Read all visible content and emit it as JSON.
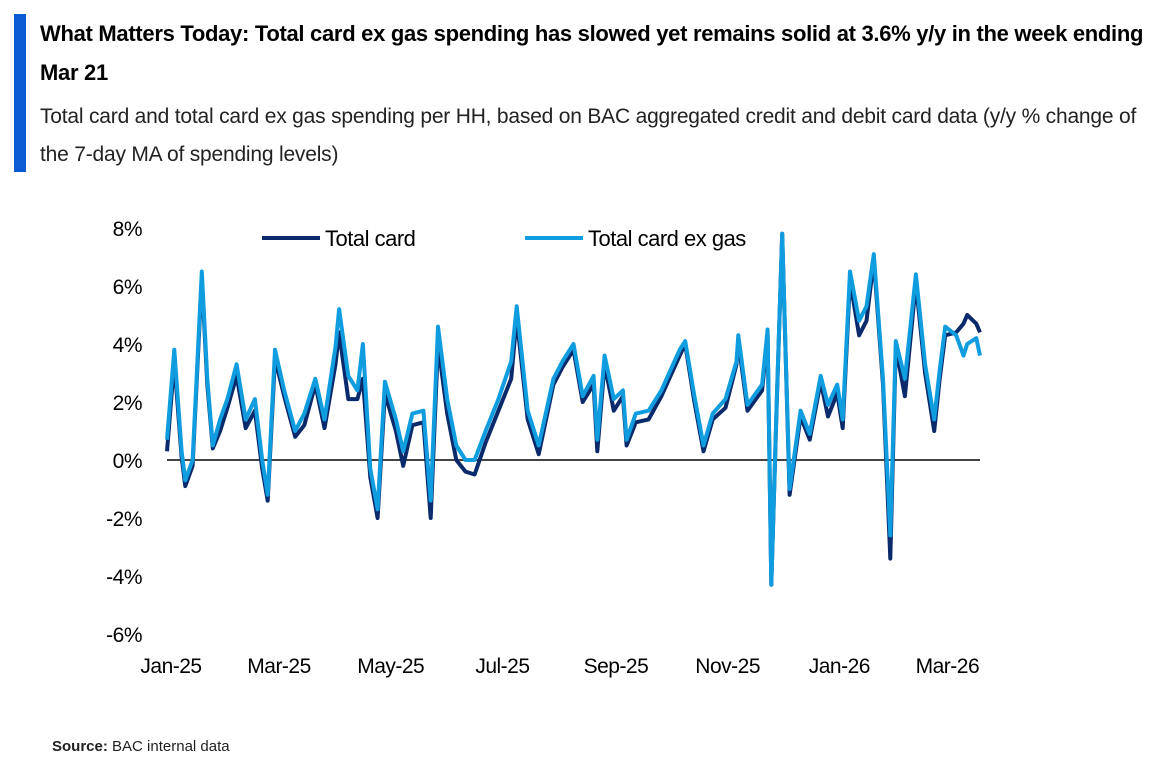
{
  "header": {
    "title": "What Matters Today: Total card ex gas spending has slowed yet remains solid at 3.6% y/y in the week ending Mar 21",
    "subtitle": "Total card and total card ex gas spending per HH, based on BAC aggregated credit and debit card data (y/y % change of the 7-day MA of spending levels)",
    "accent_color": "#0a5bd3"
  },
  "source": {
    "label": "Source:",
    "text": "BAC internal data"
  },
  "chart_data": {
    "type": "line",
    "title": "",
    "xlabel": "",
    "ylabel": "",
    "x_unit": "days since Jan 1, 2025",
    "ylim": [
      -6,
      8
    ],
    "y_ticks": [
      8,
      6,
      4,
      2,
      0,
      -2,
      -4,
      -6
    ],
    "y_tick_labels": [
      "8%",
      "6%",
      "4%",
      "2%",
      "0%",
      "-2%",
      "-4%",
      "-6%"
    ],
    "x_ticks": [
      0,
      59,
      120,
      181,
      243,
      304,
      365,
      424
    ],
    "x_tick_labels": [
      "Jan-25",
      "Mar-25",
      "May-25",
      "Jul-25",
      "Sep-25",
      "Nov-25",
      "Jan-26",
      "Mar-26"
    ],
    "xlim": [
      0,
      444
    ],
    "grid": false,
    "legend_placement": "top",
    "x": [
      0,
      4,
      8,
      10,
      14,
      19,
      22,
      25,
      29,
      33,
      38,
      43,
      48,
      52,
      55,
      59,
      64,
      70,
      75,
      81,
      86,
      92,
      94,
      99,
      104,
      107,
      111,
      115,
      119,
      125,
      129,
      134,
      140,
      144,
      148,
      153,
      158,
      163,
      168,
      174,
      181,
      188,
      191,
      197,
      203,
      211,
      216,
      222,
      227,
      233,
      235,
      239,
      244,
      249,
      251,
      256,
      263,
      270,
      275,
      280,
      283,
      288,
      293,
      298,
      305,
      311,
      312,
      317,
      325,
      328,
      330,
      333,
      336,
      340,
      346,
      351,
      357,
      361,
      366,
      369,
      373,
      378,
      382,
      386,
      391,
      395,
      398,
      403,
      409,
      414,
      419,
      422,
      425,
      431,
      435,
      437,
      442,
      444
    ],
    "series": [
      {
        "name": "Total card",
        "color": "#0b2a6b",
        "values": [
          0.3,
          3.4,
          0.1,
          -0.9,
          -0.2,
          6.3,
          2.6,
          0.4,
          1.0,
          1.8,
          2.9,
          1.1,
          1.7,
          -0.3,
          -1.4,
          3.5,
          2.2,
          0.8,
          1.2,
          2.6,
          1.1,
          3.3,
          4.4,
          2.1,
          2.1,
          2.8,
          -0.6,
          -2.0,
          2.3,
          1.0,
          -0.2,
          1.2,
          1.3,
          -2.0,
          4.0,
          1.6,
          0.0,
          -0.4,
          -0.5,
          0.6,
          1.7,
          2.8,
          4.9,
          1.4,
          0.2,
          2.6,
          3.2,
          3.8,
          2.0,
          2.6,
          0.3,
          3.3,
          1.7,
          2.2,
          0.5,
          1.3,
          1.4,
          2.2,
          2.9,
          3.6,
          4.0,
          2.0,
          0.3,
          1.4,
          1.8,
          3.3,
          4.1,
          1.7,
          2.4,
          4.3,
          -4.3,
          2.0,
          7.8,
          -1.2,
          1.5,
          0.7,
          2.7,
          1.5,
          2.3,
          1.1,
          6.2,
          4.3,
          4.8,
          6.9,
          2.6,
          -3.4,
          3.9,
          2.2,
          6.1,
          3.0,
          1.0,
          2.8,
          4.3,
          4.4,
          4.7,
          5.0,
          4.7,
          4.4
        ]
      },
      {
        "name": "Total card ex gas",
        "color": "#0f9de0",
        "values": [
          0.7,
          3.8,
          0.3,
          -0.7,
          0.0,
          6.5,
          2.8,
          0.5,
          1.4,
          2.1,
          3.3,
          1.4,
          2.1,
          0.0,
          -1.2,
          3.8,
          2.4,
          1.0,
          1.6,
          2.8,
          1.4,
          3.9,
          5.2,
          2.9,
          2.4,
          4.0,
          -0.3,
          -1.7,
          2.7,
          1.4,
          0.3,
          1.6,
          1.7,
          -1.4,
          4.6,
          2.1,
          0.5,
          0.0,
          0.0,
          1.0,
          2.1,
          3.4,
          5.3,
          1.7,
          0.5,
          2.8,
          3.4,
          4.0,
          2.2,
          2.9,
          0.7,
          3.6,
          2.1,
          2.4,
          0.7,
          1.6,
          1.7,
          2.4,
          3.1,
          3.8,
          4.1,
          2.2,
          0.5,
          1.6,
          2.1,
          3.4,
          4.3,
          1.9,
          2.6,
          4.5,
          -4.3,
          2.1,
          7.8,
          -1.0,
          1.7,
          0.9,
          2.9,
          1.9,
          2.6,
          1.4,
          6.5,
          4.8,
          5.3,
          7.1,
          2.8,
          -2.6,
          4.1,
          2.8,
          6.4,
          3.3,
          1.4,
          3.1,
          4.6,
          4.3,
          3.6,
          4.0,
          4.2,
          3.6
        ]
      }
    ]
  }
}
